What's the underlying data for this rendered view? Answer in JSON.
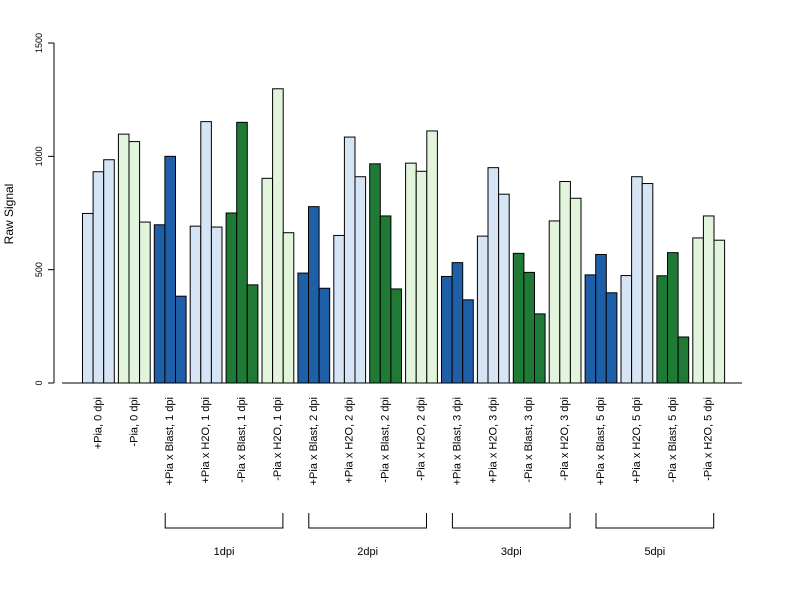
{
  "chart_data": {
    "type": "bar",
    "ylabel": "Raw Signal",
    "ylim": [
      0,
      1500
    ],
    "yticks": [
      0,
      500,
      1000,
      1500
    ],
    "grid": false,
    "categories": [
      "+Pia, 0 dpi",
      "-Pia, 0 dpi",
      "+Pia x Blast, 1 dpi",
      "+Pia x H2O, 1 dpi",
      "-Pia x Blast, 1 dpi",
      "-Pia x H2O, 1 dpi",
      "+Pia x Blast, 2 dpi",
      "+Pia x H2O, 2 dpi",
      "-Pia x Blast, 2 dpi",
      "-Pia x H2O, 2 dpi",
      "+Pia x Blast, 3 dpi",
      "+Pia x H2O, 3 dpi",
      "-Pia x Blast, 3 dpi",
      "-Pia x H2O, 3 dpi",
      "+Pia x Blast, 5 dpi",
      "+Pia x H2O, 5 dpi",
      "-Pia x Blast, 5 dpi",
      "-Pia x H2O, 5 dpi"
    ],
    "groups": [
      {
        "color": "#d6e5f5",
        "values": [
          748,
          932,
          985
        ]
      },
      {
        "color": "#e2f5dc",
        "values": [
          1098,
          1065,
          710
        ]
      },
      {
        "color": "#1f5fa8",
        "values": [
          698,
          1000,
          383
        ]
      },
      {
        "color": "#d6e5f5",
        "values": [
          692,
          1153,
          688
        ]
      },
      {
        "color": "#1f7a36",
        "values": [
          750,
          1150,
          433
        ]
      },
      {
        "color": "#e2f5dc",
        "values": [
          903,
          1298,
          663
        ]
      },
      {
        "color": "#1f5fa8",
        "values": [
          485,
          778,
          418
        ]
      },
      {
        "color": "#d6e5f5",
        "values": [
          651,
          1085,
          910
        ]
      },
      {
        "color": "#1f7a36",
        "values": [
          967,
          737,
          415
        ]
      },
      {
        "color": "#e2f5dc",
        "values": [
          970,
          934,
          1112
        ]
      },
      {
        "color": "#1f5fa8",
        "values": [
          470,
          531,
          367
        ]
      },
      {
        "color": "#d6e5f5",
        "values": [
          648,
          950,
          833
        ]
      },
      {
        "color": "#1f7a36",
        "values": [
          572,
          488,
          305
        ]
      },
      {
        "color": "#e2f5dc",
        "values": [
          715,
          889,
          815
        ]
      },
      {
        "color": "#1f5fa8",
        "values": [
          477,
          567,
          398
        ]
      },
      {
        "color": "#d6e5f5",
        "values": [
          474,
          910,
          880
        ]
      },
      {
        "color": "#1f7a36",
        "values": [
          473,
          575,
          203
        ]
      },
      {
        "color": "#e2f5dc",
        "values": [
          640,
          737,
          630
        ]
      }
    ],
    "brackets": [
      {
        "label": "1dpi",
        "from": 2,
        "to": 5
      },
      {
        "label": "2dpi",
        "from": 6,
        "to": 9
      },
      {
        "label": "3dpi",
        "from": 10,
        "to": 13
      },
      {
        "label": "5dpi",
        "from": 14,
        "to": 17
      }
    ]
  }
}
